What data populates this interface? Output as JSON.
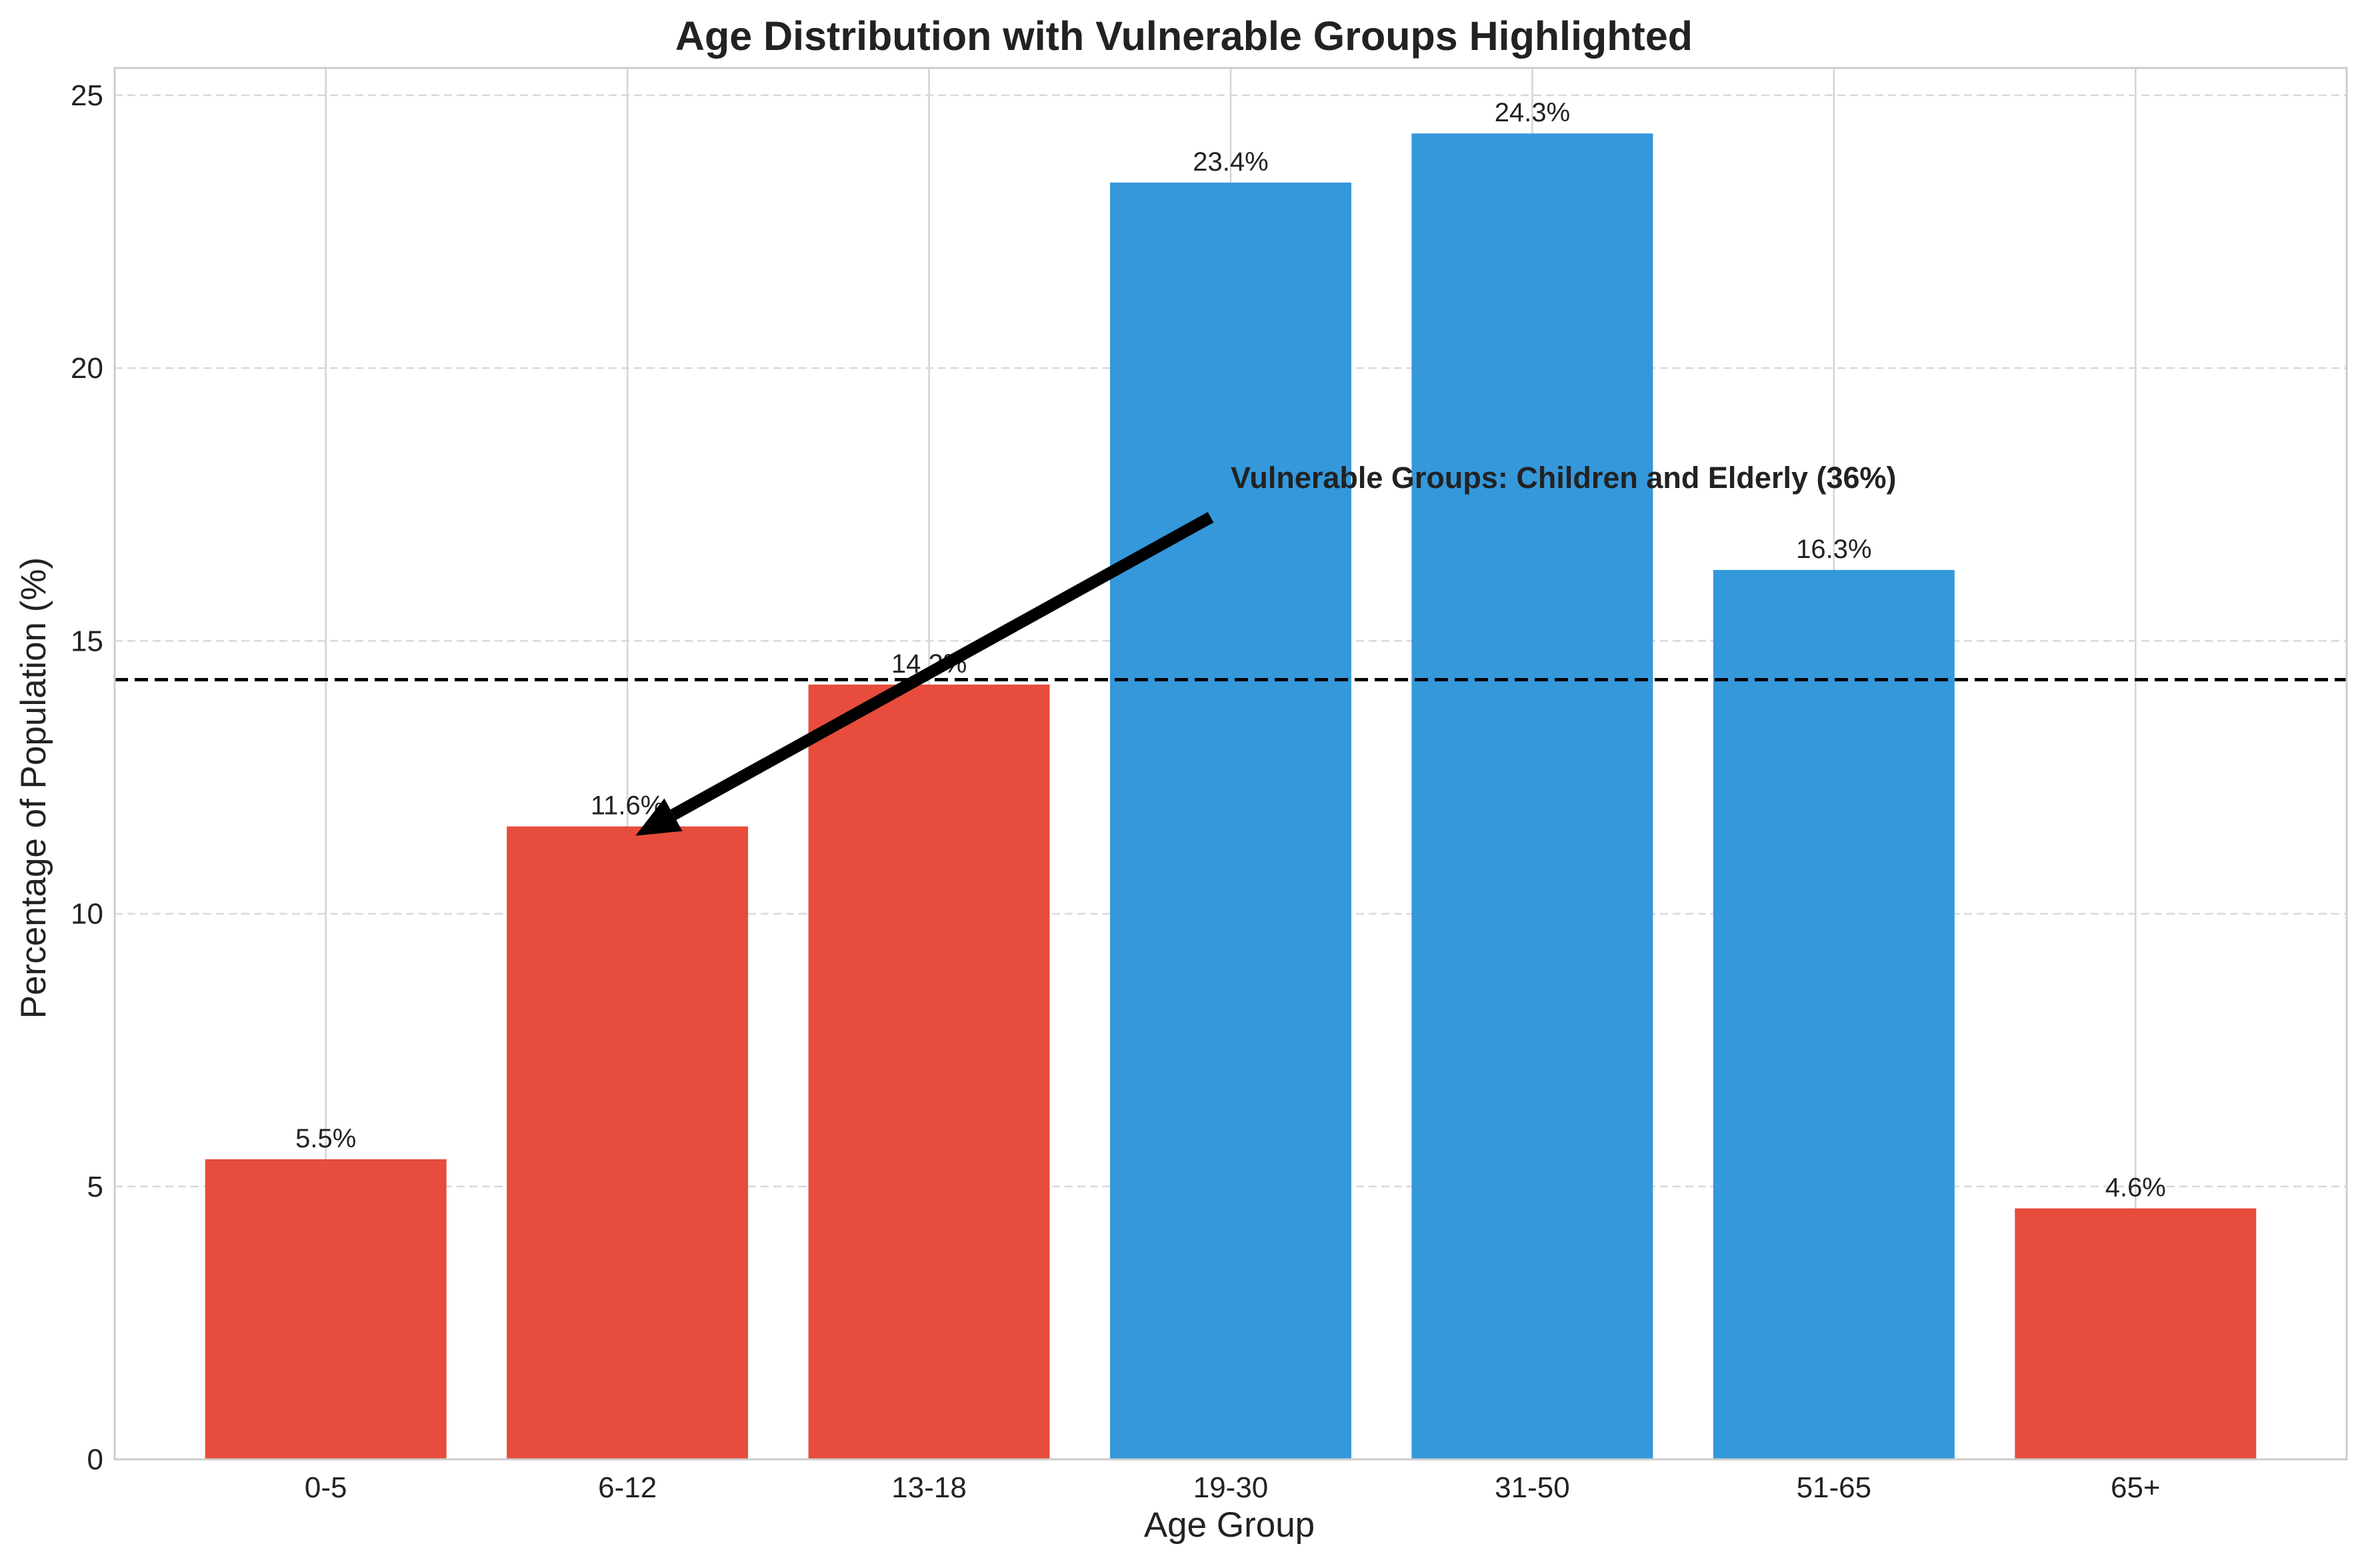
{
  "chart_data": {
    "type": "bar",
    "title": "Age Distribution with Vulnerable Groups Highlighted",
    "xlabel": "Age Group",
    "ylabel": "Percentage of Population (%)",
    "categories": [
      "0-5",
      "6-12",
      "13-18",
      "19-30",
      "31-50",
      "51-65",
      "65+"
    ],
    "values": [
      5.5,
      11.6,
      14.2,
      23.4,
      24.3,
      16.3,
      4.6
    ],
    "value_labels": [
      "5.5%",
      "11.6%",
      "14.2%",
      "23.4%",
      "24.3%",
      "16.3%",
      "4.6%"
    ],
    "vulnerable": [
      true,
      true,
      true,
      false,
      false,
      false,
      true
    ],
    "colors": {
      "vulnerable": "#e74c3c",
      "other": "#3498db"
    },
    "ylim": [
      0,
      25.5
    ],
    "yticks": [
      0,
      5,
      10,
      15,
      20,
      25
    ],
    "mean_line": 14.29,
    "grid": true,
    "annotation": {
      "text": "Vulnerable Groups: Children and Elderly (36%)",
      "xy_category": "6-12",
      "xy_value": 11.6,
      "text_x_offset": 2,
      "text_y_value": 18
    }
  }
}
